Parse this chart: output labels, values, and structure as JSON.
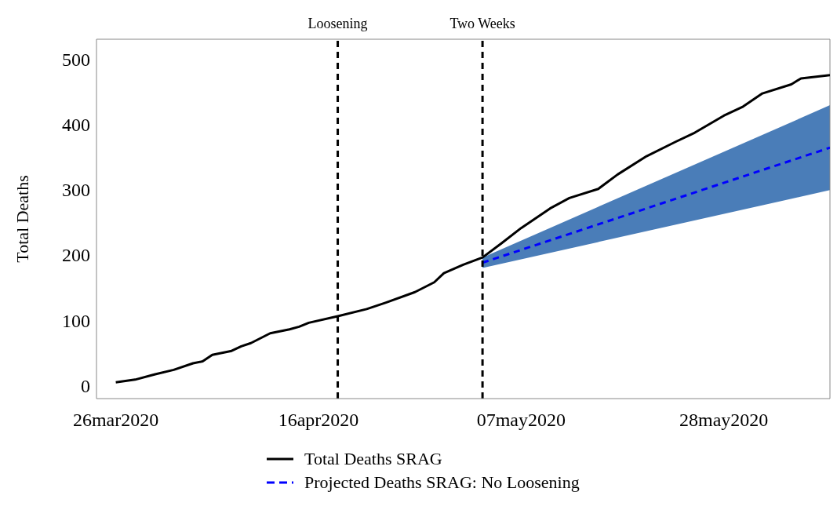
{
  "chart_data": {
    "type": "line",
    "ylabel": "Total Deaths",
    "xlim": [
      "2020-03-24",
      "2020-06-08"
    ],
    "xticks": [
      {
        "value": "2020-03-26",
        "label": "26mar2020"
      },
      {
        "value": "2020-04-16",
        "label": "16apr2020"
      },
      {
        "value": "2020-05-07",
        "label": "07may2020"
      },
      {
        "value": "2020-05-28",
        "label": "28may2020"
      }
    ],
    "ylim": [
      -20,
      530
    ],
    "yticks": [
      0,
      100,
      200,
      300,
      400,
      500
    ],
    "legend": "bottom",
    "marker": "none",
    "ref_lines": [
      {
        "axis": "x",
        "value": "2020-04-18",
        "label": "Loosening",
        "color": "#000000",
        "line_style": "dashed"
      },
      {
        "axis": "x",
        "value": "2020-05-03",
        "label": "Two Weeks",
        "color": "#000000",
        "line_style": "dashed"
      }
    ],
    "series": [
      {
        "name": "Total Deaths SRAG",
        "color": "#000000",
        "line_style": "solid",
        "x": [
          "2020-03-26",
          "2020-03-28",
          "2020-03-30",
          "2020-04-01",
          "2020-04-03",
          "2020-04-04",
          "2020-04-05",
          "2020-04-07",
          "2020-04-08",
          "2020-04-09",
          "2020-04-11",
          "2020-04-13",
          "2020-04-14",
          "2020-04-15",
          "2020-04-18",
          "2020-04-21",
          "2020-04-23",
          "2020-04-26",
          "2020-04-28",
          "2020-04-29",
          "2020-05-01",
          "2020-05-03",
          "2020-05-05",
          "2020-05-07",
          "2020-05-10",
          "2020-05-12",
          "2020-05-15",
          "2020-05-17",
          "2020-05-20",
          "2020-05-23",
          "2020-05-25",
          "2020-05-28",
          "2020-05-30",
          "2020-06-01",
          "2020-06-04",
          "2020-06-05",
          "2020-06-08"
        ],
        "values": [
          5,
          9,
          17,
          24,
          34,
          37,
          47,
          53,
          60,
          65,
          80,
          86,
          90,
          96,
          106,
          117,
          127,
          143,
          158,
          172,
          185,
          196,
          218,
          241,
          271,
          287,
          301,
          323,
          351,
          373,
          387,
          413,
          427,
          447,
          461,
          470,
          475
        ]
      },
      {
        "name": "Projected Deaths SRAG: No Loosening",
        "color": "#0000ff",
        "line_style": "dashed",
        "x": [
          "2020-05-03",
          "2020-06-08"
        ],
        "values": [
          188,
          364
        ],
        "lower": [
          180,
          299
        ],
        "upper": [
          196,
          429
        ]
      }
    ]
  }
}
